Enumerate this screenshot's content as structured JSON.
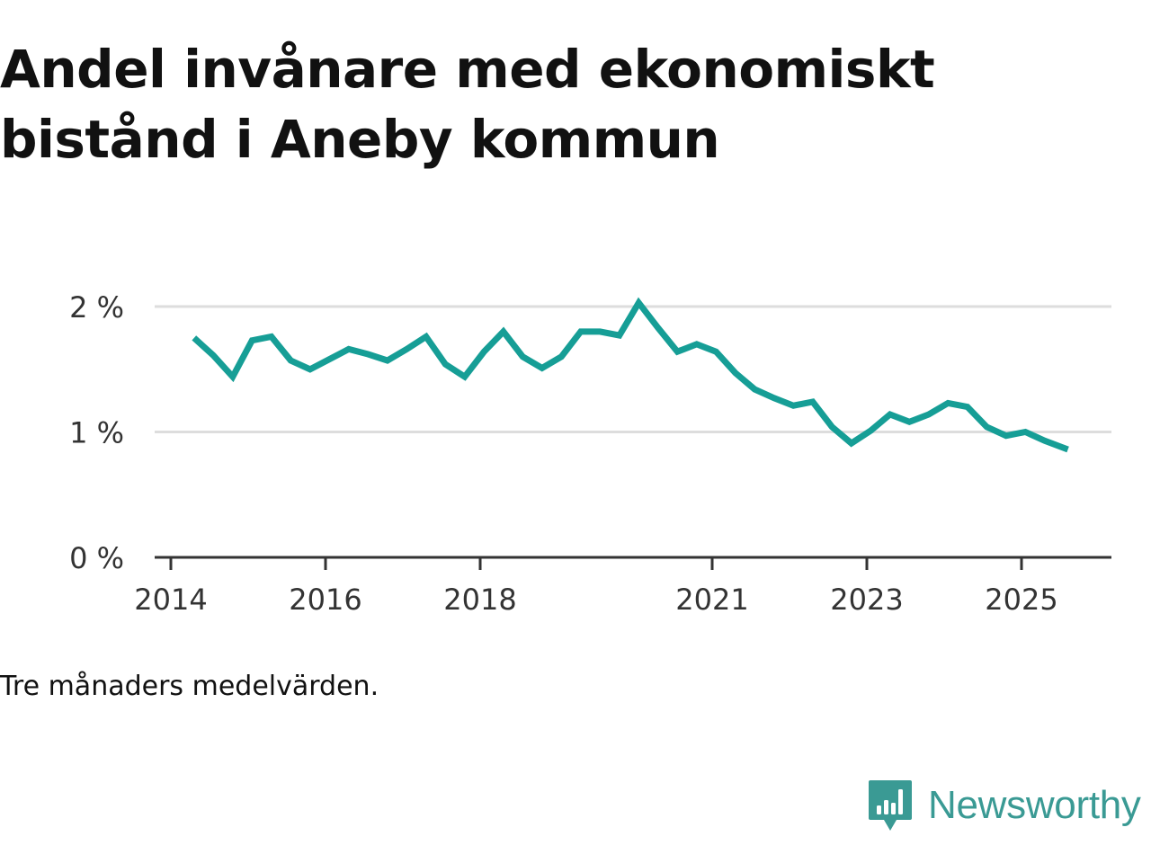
{
  "title": {
    "line1": "Andel invånare med ekonomiskt",
    "line2": "bistånd i Aneby kommun"
  },
  "caption": "Tre månaders medelvärden.",
  "brand": {
    "name": "Newsworthy",
    "color": "#3a9a94",
    "icon": "bar-chart-badge-icon"
  },
  "colors": {
    "line": "#169e96",
    "grid": "#dddddd",
    "axis": "#333333",
    "text": "#333333"
  },
  "chart_data": {
    "type": "line",
    "title": "Andel invånare med ekonomiskt bistånd i Aneby kommun",
    "xlabel": "",
    "ylabel": "",
    "ylim": [
      0,
      2
    ],
    "xlim": [
      2013.85,
      2026.25
    ],
    "yticks": [
      {
        "value": 0,
        "label": "0 %"
      },
      {
        "value": 1,
        "label": "1 %"
      },
      {
        "value": 2,
        "label": "2 %"
      }
    ],
    "xticks": [
      {
        "value": 2014,
        "label": "2014"
      },
      {
        "value": 2016,
        "label": "2016"
      },
      {
        "value": 2018,
        "label": "2018"
      },
      {
        "value": 2021,
        "label": "2021"
      },
      {
        "value": 2023,
        "label": "2023"
      },
      {
        "value": 2025,
        "label": "2025"
      }
    ],
    "grid": true,
    "series": [
      {
        "name": "Andel invånare med ekonomiskt bistånd",
        "x": [
          2014.3,
          2014.55,
          2014.8,
          2015.05,
          2015.3,
          2015.55,
          2015.8,
          2016.05,
          2016.3,
          2016.55,
          2016.8,
          2017.05,
          2017.3,
          2017.55,
          2017.8,
          2018.05,
          2018.3,
          2018.55,
          2018.8,
          2019.05,
          2019.3,
          2019.55,
          2019.8,
          2020.05,
          2020.3,
          2020.55,
          2020.8,
          2021.05,
          2021.3,
          2021.55,
          2021.8,
          2022.05,
          2022.3,
          2022.55,
          2022.8,
          2023.05,
          2023.3,
          2023.55,
          2023.8,
          2024.05,
          2024.3,
          2024.55,
          2024.8,
          2025.05,
          2025.3,
          2025.6
        ],
        "values": [
          1.75,
          1.61,
          1.44,
          1.73,
          1.76,
          1.57,
          1.5,
          1.58,
          1.66,
          1.62,
          1.57,
          1.66,
          1.76,
          1.54,
          1.44,
          1.64,
          1.8,
          1.6,
          1.51,
          1.6,
          1.8,
          1.8,
          1.77,
          2.03,
          1.83,
          1.64,
          1.7,
          1.64,
          1.47,
          1.34,
          1.27,
          1.21,
          1.24,
          1.04,
          0.91,
          1.01,
          1.14,
          1.08,
          1.14,
          1.23,
          1.2,
          1.04,
          0.97,
          1.0,
          0.93,
          0.86
        ]
      }
    ]
  }
}
